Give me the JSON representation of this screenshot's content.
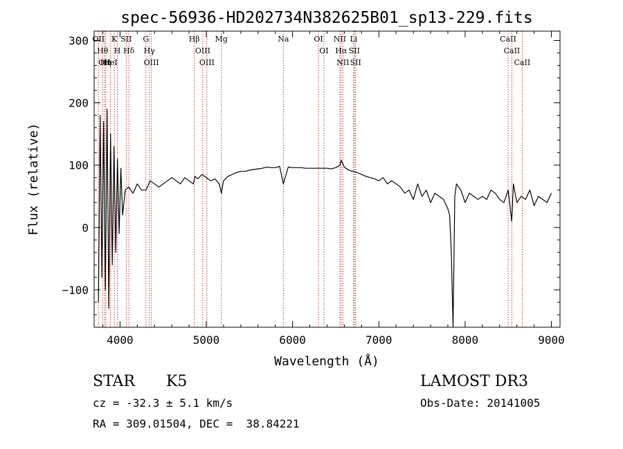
{
  "chart_data": {
    "type": "line",
    "title": "spec-56936-HD202734N382625B01_sp13-229.fits",
    "xlabel": "Wavelength (Å)",
    "ylabel": "Flux (relative)",
    "xlim": [
      3700,
      9100
    ],
    "ylim": [
      -160,
      315
    ],
    "xticks": [
      4000,
      5000,
      6000,
      7000,
      8000,
      9000
    ],
    "yticks": [
      -100,
      0,
      100,
      200,
      300
    ],
    "grid": false,
    "series": [
      {
        "x": [
          3750,
          3770,
          3790,
          3810,
          3830,
          3850,
          3870,
          3890,
          3910,
          3930,
          3950,
          3970,
          3990,
          4010,
          4030,
          4060,
          4100,
          4150,
          4200,
          4250,
          4300,
          4350,
          4400,
          4450,
          4500,
          4550,
          4600,
          4650,
          4700,
          4750,
          4800,
          4850,
          4870,
          4900,
          4950,
          5000,
          5050,
          5100,
          5150,
          5175,
          5200,
          5250,
          5300,
          5350,
          5400,
          5450,
          5500,
          5550,
          5600,
          5650,
          5700,
          5750,
          5800,
          5850,
          5893,
          5950,
          6000,
          6050,
          6100,
          6150,
          6200,
          6250,
          6300,
          6350,
          6400,
          6450,
          6500,
          6550,
          6563,
          6600,
          6650,
          6700,
          6750,
          6800,
          6850,
          6900,
          6950,
          7000,
          7050,
          7100,
          7150,
          7200,
          7250,
          7300,
          7350,
          7400,
          7450,
          7500,
          7550,
          7600,
          7650,
          7700,
          7750,
          7800,
          7820,
          7840,
          7860,
          7880,
          7900,
          7950,
          8000,
          8050,
          8100,
          8150,
          8200,
          8250,
          8300,
          8350,
          8400,
          8450,
          8500,
          8540,
          8560,
          8600,
          8650,
          8700,
          8750,
          8800,
          8850,
          8900,
          8950,
          9000
        ],
        "y": [
          -120,
          180,
          -80,
          170,
          -100,
          190,
          -130,
          150,
          -60,
          130,
          -40,
          110,
          -10,
          95,
          20,
          60,
          65,
          55,
          70,
          60,
          60,
          75,
          70,
          65,
          70,
          75,
          80,
          75,
          70,
          80,
          75,
          70,
          82,
          78,
          85,
          80,
          75,
          78,
          70,
          55,
          75,
          82,
          85,
          88,
          90,
          90,
          92,
          93,
          94,
          95,
          97,
          96,
          96,
          98,
          70,
          97,
          96,
          96,
          96,
          95,
          95,
          95,
          95,
          95,
          95,
          94,
          96,
          100,
          108,
          97,
          92,
          90,
          88,
          85,
          82,
          80,
          78,
          75,
          80,
          70,
          75,
          70,
          65,
          55,
          60,
          45,
          70,
          50,
          60,
          40,
          55,
          50,
          45,
          30,
          20,
          -40,
          -160,
          50,
          70,
          60,
          40,
          55,
          50,
          45,
          50,
          45,
          60,
          55,
          45,
          40,
          60,
          10,
          70,
          40,
          50,
          45,
          60,
          35,
          50,
          45,
          40,
          55
        ]
      }
    ],
    "lines": [
      {
        "x": 3750,
        "label": "OII"
      },
      {
        "x": 3798,
        "label": "Hθ"
      },
      {
        "x": 3820,
        "label": "OII"
      },
      {
        "x": 3835,
        "label": "Hη"
      },
      {
        "x": 3889,
        "label": "HeI"
      },
      {
        "x": 3934,
        "label": "K"
      },
      {
        "x": 3969,
        "label": "H"
      },
      {
        "x": 4072,
        "label": "SII"
      },
      {
        "x": 4102,
        "label": "Hδ"
      },
      {
        "x": 4300,
        "label": "G"
      },
      {
        "x": 4340,
        "label": "Hγ"
      },
      {
        "x": 4363,
        "label": "OIII"
      },
      {
        "x": 4861,
        "label": "Hβ"
      },
      {
        "x": 4959,
        "label": "OIII"
      },
      {
        "x": 5007,
        "label": "OIII"
      },
      {
        "x": 5175,
        "label": "Mg"
      },
      {
        "x": 5893,
        "label": "Na"
      },
      {
        "x": 6300,
        "label": "OI"
      },
      {
        "x": 6363,
        "label": "OI"
      },
      {
        "x": 6548,
        "label": "NII"
      },
      {
        "x": 6563,
        "label": "Hα"
      },
      {
        "x": 6583,
        "label": "NII"
      },
      {
        "x": 6708,
        "label": "Li"
      },
      {
        "x": 6716,
        "label": "SII"
      },
      {
        "x": 6731,
        "label": "SII"
      },
      {
        "x": 8498,
        "label": "CaII"
      },
      {
        "x": 8542,
        "label": "CaII"
      },
      {
        "x": 8662,
        "label": "CaII"
      }
    ]
  },
  "info": {
    "class_label": "STAR",
    "subclass": "K5",
    "cz": "cz = -32.3 ± 5.1 km/s",
    "radec": "RA = 309.01504, DEC =  38.84221",
    "survey": "LAMOST DR3",
    "obs_date": "Obs-Date: 20141005"
  }
}
